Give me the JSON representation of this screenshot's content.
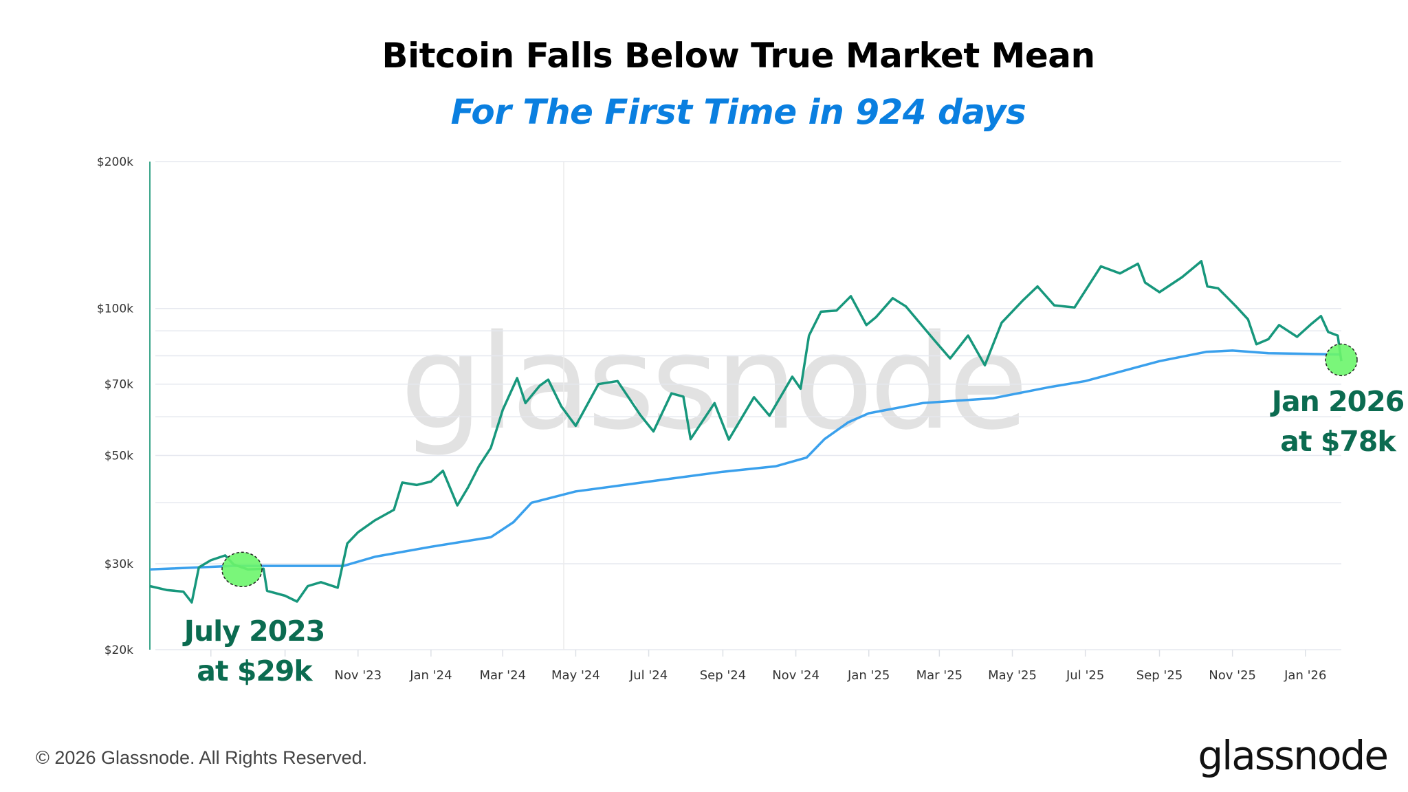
{
  "title": "Bitcoin Falls Below True Market Mean",
  "subtitle": "For The First Time in 924 days",
  "footer": {
    "copyright": "© 2026 Glassnode. All Rights Reserved.",
    "logo": "glassnode"
  },
  "watermark": "glassnode",
  "colors": {
    "price": "#17977c",
    "mean": "#3aa0ec",
    "annotation_text": "#0b6b50",
    "highlight": "#6cf56c",
    "subtitle": "#0a7fe0"
  },
  "chart_data": {
    "type": "line",
    "title": "Bitcoin Falls Below True Market Mean",
    "subtitle": "For The First Time in 924 days",
    "y_scale": "log",
    "ylim": [
      20000,
      200000
    ],
    "xlim": [
      "2023-05-11",
      "2026-01-31"
    ],
    "grid": true,
    "y_gridlines": [
      20000,
      30000,
      40000,
      50000,
      60000,
      70000,
      80000,
      90000,
      100000,
      200000
    ],
    "y_ticks": [
      {
        "v": 200000,
        "label": "$200k"
      },
      {
        "v": 100000,
        "label": "$100k"
      },
      {
        "v": 70000,
        "label": "$70k"
      },
      {
        "v": 50000,
        "label": "$50k"
      },
      {
        "v": 30000,
        "label": "$30k"
      },
      {
        "v": 20000,
        "label": "$20k"
      }
    ],
    "x_ticks": [
      {
        "date": "2023-07-01",
        "label": ""
      },
      {
        "date": "2023-09-01",
        "label": ""
      },
      {
        "date": "2023-11-01",
        "label": "Nov '23"
      },
      {
        "date": "2024-01-01",
        "label": "Jan '24"
      },
      {
        "date": "2024-03-01",
        "label": "Mar '24"
      },
      {
        "date": "2024-05-01",
        "label": "May '24"
      },
      {
        "date": "2024-07-01",
        "label": "Jul '24"
      },
      {
        "date": "2024-09-01",
        "label": "Sep '24"
      },
      {
        "date": "2024-11-01",
        "label": "Nov '24"
      },
      {
        "date": "2025-01-01",
        "label": "Jan '25"
      },
      {
        "date": "2025-03-01",
        "label": "Mar '25"
      },
      {
        "date": "2025-05-01",
        "label": "May '25"
      },
      {
        "date": "2025-07-01",
        "label": "Jul '25"
      },
      {
        "date": "2025-09-01",
        "label": "Sep '25"
      },
      {
        "date": "2025-11-01",
        "label": "Nov '25"
      },
      {
        "date": "2026-01-01",
        "label": "Jan '26"
      }
    ],
    "series": [
      {
        "key": "price",
        "points": [
          [
            "2023-05-11",
            27000
          ],
          [
            "2023-05-25",
            26500
          ],
          [
            "2023-06-08",
            26300
          ],
          [
            "2023-06-15",
            25000
          ],
          [
            "2023-06-21",
            29500
          ],
          [
            "2023-07-01",
            30500
          ],
          [
            "2023-07-13",
            31200
          ],
          [
            "2023-07-20",
            29900
          ],
          [
            "2023-08-01",
            29200
          ],
          [
            "2023-08-14",
            29300
          ],
          [
            "2023-08-17",
            26400
          ],
          [
            "2023-09-01",
            25800
          ],
          [
            "2023-09-11",
            25100
          ],
          [
            "2023-09-20",
            27000
          ],
          [
            "2023-10-01",
            27500
          ],
          [
            "2023-10-15",
            26800
          ],
          [
            "2023-10-23",
            33000
          ],
          [
            "2023-11-01",
            34800
          ],
          [
            "2023-11-15",
            36800
          ],
          [
            "2023-12-01",
            38700
          ],
          [
            "2023-12-08",
            44000
          ],
          [
            "2023-12-20",
            43500
          ],
          [
            "2024-01-01",
            44200
          ],
          [
            "2024-01-11",
            46500
          ],
          [
            "2024-01-23",
            39500
          ],
          [
            "2024-02-01",
            43000
          ],
          [
            "2024-02-10",
            47500
          ],
          [
            "2024-02-20",
            51800
          ],
          [
            "2024-03-01",
            62000
          ],
          [
            "2024-03-13",
            72000
          ],
          [
            "2024-03-20",
            64000
          ],
          [
            "2024-04-01",
            69500
          ],
          [
            "2024-04-08",
            71500
          ],
          [
            "2024-04-19",
            63000
          ],
          [
            "2024-05-01",
            57500
          ],
          [
            "2024-05-20",
            70000
          ],
          [
            "2024-06-05",
            71000
          ],
          [
            "2024-06-24",
            60500
          ],
          [
            "2024-07-05",
            56000
          ],
          [
            "2024-07-20",
            67000
          ],
          [
            "2024-07-30",
            66000
          ],
          [
            "2024-08-05",
            54000
          ],
          [
            "2024-08-25",
            64000
          ],
          [
            "2024-09-06",
            53900
          ],
          [
            "2024-09-27",
            65800
          ],
          [
            "2024-10-10",
            60300
          ],
          [
            "2024-10-29",
            72500
          ],
          [
            "2024-11-05",
            68500
          ],
          [
            "2024-11-12",
            88000
          ],
          [
            "2024-11-22",
            98500
          ],
          [
            "2024-12-05",
            99000
          ],
          [
            "2024-12-17",
            106000
          ],
          [
            "2024-12-30",
            92500
          ],
          [
            "2025-01-07",
            96000
          ],
          [
            "2025-01-21",
            105000
          ],
          [
            "2025-02-01",
            101000
          ],
          [
            "2025-02-25",
            86000
          ],
          [
            "2025-03-10",
            79000
          ],
          [
            "2025-03-25",
            88000
          ],
          [
            "2025-04-08",
            76500
          ],
          [
            "2025-04-22",
            93500
          ],
          [
            "2025-05-10",
            104000
          ],
          [
            "2025-05-22",
            111000
          ],
          [
            "2025-06-05",
            101500
          ],
          [
            "2025-06-22",
            100500
          ],
          [
            "2025-07-14",
            122000
          ],
          [
            "2025-07-30",
            118000
          ],
          [
            "2025-08-14",
            123500
          ],
          [
            "2025-08-20",
            113000
          ],
          [
            "2025-09-01",
            108000
          ],
          [
            "2025-09-20",
            116000
          ],
          [
            "2025-10-06",
            125000
          ],
          [
            "2025-10-11",
            111000
          ],
          [
            "2025-10-20",
            110000
          ],
          [
            "2025-11-04",
            101000
          ],
          [
            "2025-11-14",
            95000
          ],
          [
            "2025-11-21",
            84500
          ],
          [
            "2025-12-01",
            86500
          ],
          [
            "2025-12-10",
            92500
          ],
          [
            "2025-12-25",
            87500
          ],
          [
            "2026-01-06",
            93000
          ],
          [
            "2026-01-14",
            96500
          ],
          [
            "2026-01-20",
            89500
          ],
          [
            "2026-01-28",
            88000
          ],
          [
            "2026-01-31",
            78000
          ]
        ]
      },
      {
        "key": "mean",
        "points": [
          [
            "2023-05-11",
            29200
          ],
          [
            "2023-07-20",
            29700
          ],
          [
            "2023-10-20",
            29700
          ],
          [
            "2023-11-15",
            31000
          ],
          [
            "2024-01-01",
            32500
          ],
          [
            "2024-02-20",
            34000
          ],
          [
            "2024-03-10",
            36500
          ],
          [
            "2024-03-25",
            40000
          ],
          [
            "2024-05-01",
            42200
          ],
          [
            "2024-07-01",
            44200
          ],
          [
            "2024-09-01",
            46300
          ],
          [
            "2024-10-15",
            47500
          ],
          [
            "2024-11-10",
            49500
          ],
          [
            "2024-11-25",
            54000
          ],
          [
            "2024-12-15",
            58500
          ],
          [
            "2025-01-01",
            61000
          ],
          [
            "2025-02-15",
            64000
          ],
          [
            "2025-04-15",
            65500
          ],
          [
            "2025-06-01",
            69000
          ],
          [
            "2025-07-01",
            71000
          ],
          [
            "2025-09-01",
            78000
          ],
          [
            "2025-10-10",
            81500
          ],
          [
            "2025-11-01",
            82000
          ],
          [
            "2025-12-01",
            81000
          ],
          [
            "2026-01-31",
            80500
          ]
        ]
      }
    ],
    "annotations": [
      {
        "key": "start",
        "line1": "July 2023",
        "line2": "at $29k",
        "date": "2023-07-27",
        "value": 29200
      },
      {
        "key": "end",
        "line1": "Jan 2026",
        "line2": "at $78k",
        "date": "2026-01-31",
        "value": 78500
      }
    ]
  }
}
